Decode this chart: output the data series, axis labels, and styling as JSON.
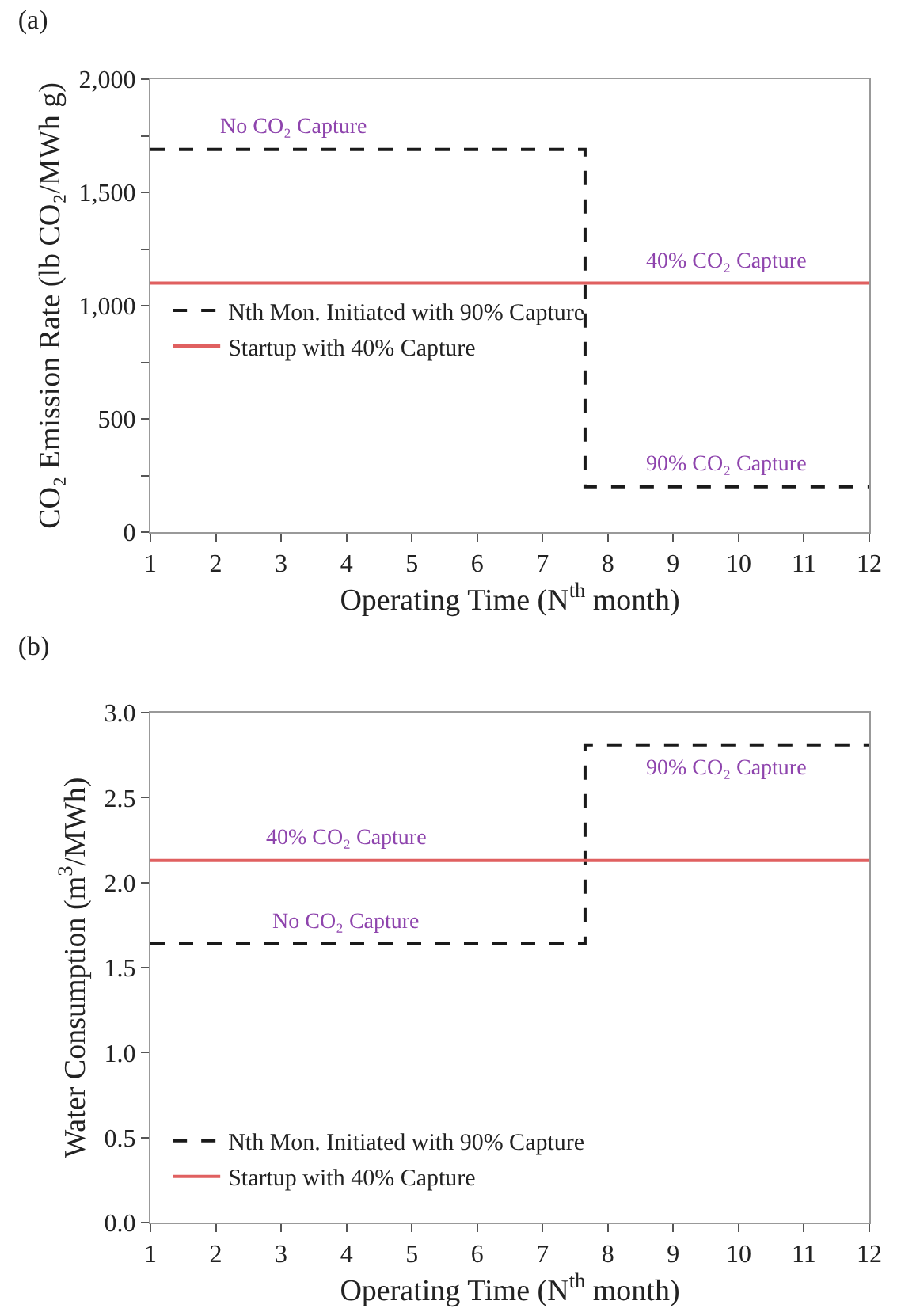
{
  "chart_data": [
    {
      "type": "step",
      "title": "(a)",
      "xlabel": "Operating Time (N$^{th}$ month)",
      "ylabel": "CO₂ Emission Rate (lb CO₂/MWh g)",
      "xlim": [
        1,
        12
      ],
      "xticks": [
        1,
        2,
        3,
        4,
        5,
        6,
        7,
        8,
        9,
        10,
        11,
        12
      ],
      "ylim": [
        0,
        2000
      ],
      "yticks": [
        0,
        {
          "value": 250,
          "label": null
        },
        500,
        {
          "value": 750,
          "label": null
        },
        {
          "value": 1000,
          "label": "1,000"
        },
        {
          "value": 1250,
          "label": null
        },
        {
          "value": 1500,
          "label": "1,500"
        },
        {
          "value": 1750,
          "label": null
        },
        {
          "value": 2000,
          "label": "2,000"
        }
      ],
      "series": [
        {
          "name": "Nth Mon. Initiated with 90% Capture",
          "color": "#1a1a1a",
          "line_style": "dashed",
          "x": [
            1,
            7.65,
            12
          ],
          "values": [
            1690,
            200,
            200
          ]
        },
        {
          "name": "Startup with 40% Capture",
          "color": "#e06060",
          "line_style": "solid",
          "x": [
            1,
            12
          ],
          "values": [
            1100,
            1100
          ]
        }
      ],
      "annotations": [
        {
          "text": "No CO₂ Capture",
          "x": 3.2,
          "y": 1690
        },
        {
          "text": "40% CO₂ Capture",
          "x": 9.8,
          "y": 1100
        },
        {
          "text": "90% CO₂ Capture",
          "x": 9.8,
          "y": 200
        }
      ],
      "grid": false,
      "legend": "left"
    },
    {
      "type": "step",
      "title": "(b)",
      "xlabel": "Operating Time (N$^{th}$ month)",
      "ylabel": "Water Consumption (m$^{3}$/MWh)",
      "xlim": [
        1,
        12
      ],
      "xticks": [
        1,
        2,
        3,
        4,
        5,
        6,
        7,
        8,
        9,
        10,
        11,
        12
      ],
      "ylim": [
        0,
        3
      ],
      "yticks": [
        {
          "value": 0,
          "label": "0.0"
        },
        0.5,
        {
          "value": 1,
          "label": "1.0"
        },
        1.5,
        {
          "value": 2,
          "label": "2.0"
        },
        2.5,
        {
          "value": 3,
          "label": "3.0"
        }
      ],
      "series": [
        {
          "name": "Nth Mon. Initiated with 90% Capture",
          "color": "#1a1a1a",
          "line_style": "dashed",
          "x": [
            1,
            7.65,
            12
          ],
          "values": [
            1.64,
            2.81,
            2.81
          ]
        },
        {
          "name": "Startup with 40% Capture",
          "color": "#e06060",
          "line_style": "solid",
          "x": [
            1,
            12
          ],
          "values": [
            2.13,
            2.13
          ]
        }
      ],
      "annotations": [
        {
          "text": "40% CO₂ Capture",
          "x": 4,
          "y": 2.13
        },
        {
          "text": "No CO₂ Capture",
          "x": 4,
          "y": 1.64
        },
        {
          "text": "90% CO₂ Capture",
          "x": 9.8,
          "y": 2.81
        }
      ],
      "grid": false,
      "legend": "bottom left"
    }
  ]
}
